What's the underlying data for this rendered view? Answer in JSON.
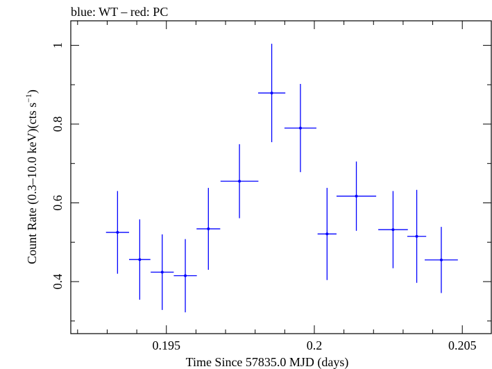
{
  "chart_data": {
    "type": "scatter",
    "title": "blue: WT – red: PC",
    "xlabel": "Time Since 57835.0 MJD (days)",
    "ylabel_main": "Count Rate (0.3–10.0 keV)(cts s",
    "ylabel_sup": "−1",
    "ylabel_close": ")",
    "xlim": [
      0.19177,
      0.20598
    ],
    "ylim": [
      0.2679,
      1.0623
    ],
    "x_major_ticks": [
      0.195,
      0.2,
      0.205
    ],
    "x_tick_labels": [
      "0.195",
      "0.2",
      "0.205"
    ],
    "x_minor_step": 0.001,
    "y_major_ticks": [
      0.4,
      0.6,
      0.8,
      1.0
    ],
    "y_tick_labels": [
      "0.4",
      "0.6",
      "0.8",
      "1"
    ],
    "y_minor_step": 0.1,
    "grid": false,
    "series": [
      {
        "color": "#0000ff",
        "points": [
          {
            "x": 0.19335,
            "xerr": 0.00039,
            "y": 0.525,
            "yerr_up": 0.105,
            "yerr_down": 0.105
          },
          {
            "x": 0.1941,
            "xerr": 0.00036,
            "y": 0.456,
            "yerr_up": 0.102,
            "yerr_down": 0.102
          },
          {
            "x": 0.19486,
            "xerr": 0.00039,
            "y": 0.424,
            "yerr_up": 0.096,
            "yerr_down": 0.096
          },
          {
            "x": 0.19564,
            "xerr": 0.00039,
            "y": 0.415,
            "yerr_up": 0.093,
            "yerr_down": 0.093
          },
          {
            "x": 0.19642,
            "xerr": 0.0004,
            "y": 0.534,
            "yerr_up": 0.104,
            "yerr_down": 0.104
          },
          {
            "x": 0.19747,
            "xerr": 0.00064,
            "y": 0.655,
            "yerr_up": 0.094,
            "yerr_down": 0.094
          },
          {
            "x": 0.19856,
            "xerr": 0.00046,
            "y": 0.879,
            "yerr_up": 0.125,
            "yerr_down": 0.125
          },
          {
            "x": 0.19953,
            "xerr": 0.00054,
            "y": 0.79,
            "yerr_up": 0.112,
            "yerr_down": 0.112
          },
          {
            "x": 0.20043,
            "xerr": 0.00032,
            "y": 0.521,
            "yerr_up": 0.117,
            "yerr_down": 0.117
          },
          {
            "x": 0.20142,
            "xerr": 0.00067,
            "y": 0.617,
            "yerr_up": 0.088,
            "yerr_down": 0.088
          },
          {
            "x": 0.20266,
            "xerr": 0.0005,
            "y": 0.532,
            "yerr_up": 0.098,
            "yerr_down": 0.098
          },
          {
            "x": 0.20346,
            "xerr": 0.00032,
            "y": 0.515,
            "yerr_up": 0.118,
            "yerr_down": 0.118
          },
          {
            "x": 0.20429,
            "xerr": 0.00056,
            "y": 0.455,
            "yerr_up": 0.084,
            "yerr_down": 0.084
          }
        ]
      }
    ]
  }
}
